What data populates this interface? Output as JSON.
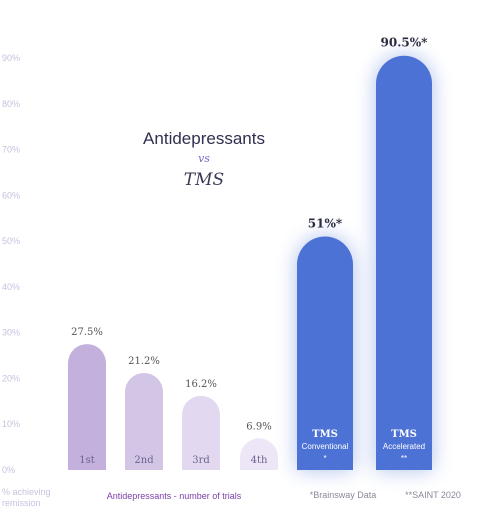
{
  "chart_data": {
    "type": "bar",
    "title": "Antidepressants",
    "title_vs": "vs",
    "title_tms": "TMS",
    "ylim": [
      0,
      90
    ],
    "y_ticks": [
      "0%",
      "10%",
      "20%",
      "30%",
      "40%",
      "50%",
      "60%",
      "70%",
      "80%",
      "90%"
    ],
    "ylabel_line1": "% achieving",
    "ylabel_line2": "remission",
    "xlabel": "Antidepressants - number of trials",
    "grid": false,
    "categories": [
      "1st",
      "2nd",
      "3rd",
      "4th",
      "TMS",
      "TMS"
    ],
    "values": [
      27.5,
      21.2,
      16.2,
      6.9,
      51,
      90.5
    ],
    "value_labels": [
      "27.5%",
      "21.2%",
      "16.2%",
      "6.9%",
      "51%*",
      "90.5%*"
    ],
    "bar_sublabels": [
      "",
      "",
      "",
      "",
      "Conventional",
      "Accelerated"
    ],
    "bar_marks": [
      "",
      "",
      "",
      "",
      "*",
      "**"
    ],
    "footnotes": [
      "*Brainsway Data",
      "**SAINT 2020"
    ],
    "colors": {
      "anti": [
        "#c3b0dc",
        "#d3c5e6",
        "#e2d8ef",
        "#ece6f6"
      ],
      "tms": "#4c72d6",
      "tick": "#c9c0e0",
      "xlabel": "#7a3fa8",
      "footnote": "#8a8a9a"
    }
  }
}
